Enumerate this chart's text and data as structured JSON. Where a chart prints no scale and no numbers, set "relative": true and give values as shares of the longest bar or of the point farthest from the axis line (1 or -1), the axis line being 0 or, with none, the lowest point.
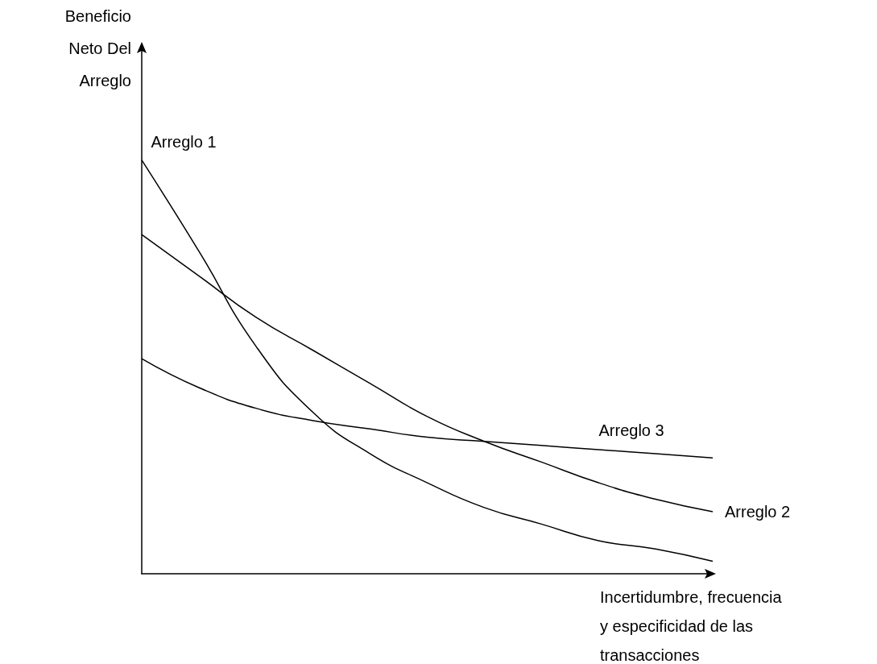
{
  "chart_data": {
    "type": "line",
    "relative": true,
    "xlabel": "Incertidumbre, frecuencia y especificidad de las transacciones",
    "ylabel": "Beneficio Neto Del Arreglo",
    "categories": [
      null,
      null,
      null,
      null,
      null,
      null,
      null,
      null,
      null,
      null,
      null
    ],
    "series": [
      {
        "name": "Arreglo 1",
        "color": "#000000",
        "values": [
          1.0,
          0.78,
          0.55,
          0.39,
          0.29,
          0.22,
          0.16,
          0.12,
          0.08,
          0.06,
          0.03
        ]
      },
      {
        "name": "Arreglo 2",
        "color": "#000000",
        "values": [
          0.82,
          0.72,
          0.62,
          0.54,
          0.46,
          0.38,
          0.32,
          0.27,
          0.22,
          0.18,
          0.15
        ]
      },
      {
        "name": "Arreglo 3",
        "color": "#000000",
        "values": [
          0.52,
          0.45,
          0.4,
          0.37,
          0.35,
          0.33,
          0.32,
          0.31,
          0.3,
          0.29,
          0.28
        ]
      }
    ],
    "grid": false,
    "marker": "none",
    "line_style": "solid"
  }
}
